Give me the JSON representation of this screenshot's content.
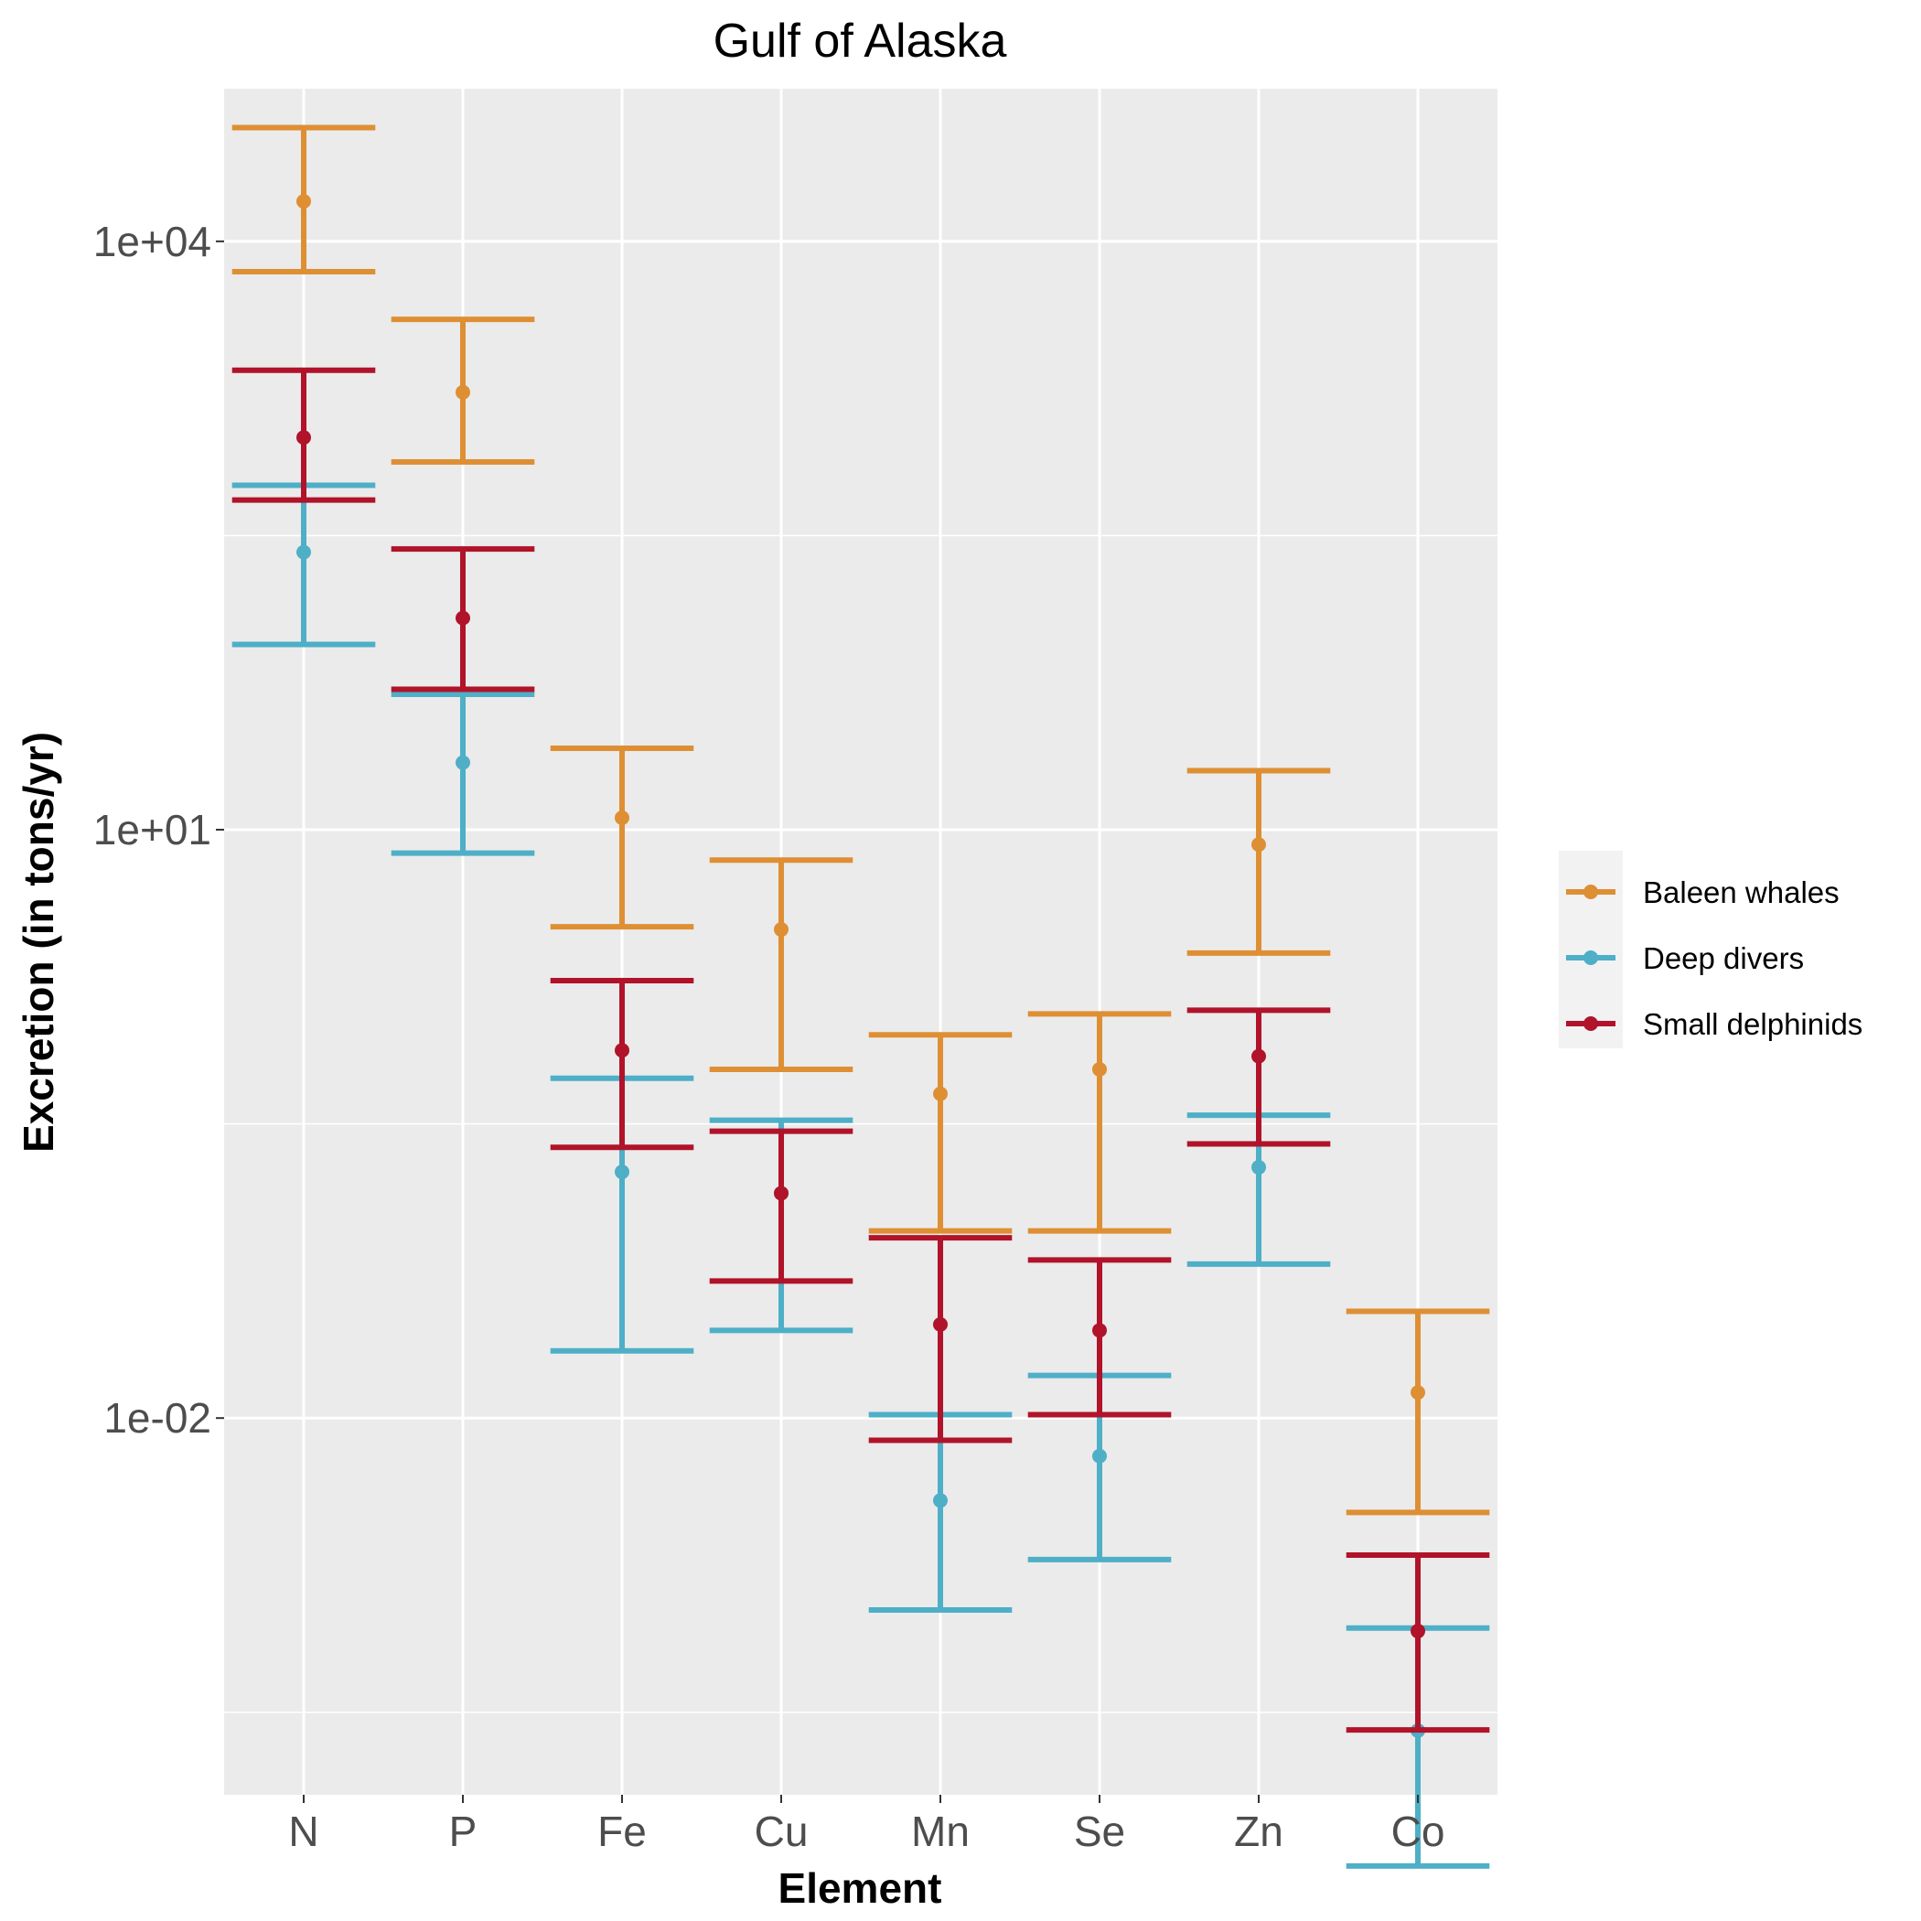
{
  "chart_data": {
    "type": "errorbar",
    "title": "Gulf of Alaska",
    "xlabel": "Element",
    "ylabel": "Excretion (in tons/yr)",
    "y_scale": "log10",
    "ylim": [
      0.00012,
      60000
    ],
    "y_ticks": [
      {
        "value": 0.01,
        "label": "1e-02"
      },
      {
        "value": 10,
        "label": "1e+01"
      },
      {
        "value": 10000,
        "label": "1e+04"
      }
    ],
    "y_minor_ticks": [
      0.000316,
      0.316,
      316
    ],
    "grid": true,
    "legend_position": "right",
    "categories": [
      "N",
      "P",
      "Fe",
      "Cu",
      "Mn",
      "Se",
      "Zn",
      "Co"
    ],
    "series": [
      {
        "name": "Baleen whales",
        "color": "#DE8F34",
        "points": [
          {
            "x": "N",
            "y": 16000,
            "lower": 7000,
            "upper": 38000
          },
          {
            "x": "P",
            "y": 1700,
            "lower": 750,
            "upper": 4000
          },
          {
            "x": "Fe",
            "y": 11.5,
            "lower": 3.2,
            "upper": 26
          },
          {
            "x": "Cu",
            "y": 3.1,
            "lower": 0.6,
            "upper": 7
          },
          {
            "x": "Mn",
            "y": 0.45,
            "lower": 0.09,
            "upper": 0.9
          },
          {
            "x": "Se",
            "y": 0.6,
            "lower": 0.09,
            "upper": 1.15
          },
          {
            "x": "Zn",
            "y": 8.4,
            "lower": 2.35,
            "upper": 20
          },
          {
            "x": "Co",
            "y": 0.0135,
            "lower": 0.0033,
            "upper": 0.035
          }
        ]
      },
      {
        "name": "Deep divers",
        "color": "#4EAFC7",
        "points": [
          {
            "x": "N",
            "y": 260,
            "lower": 88,
            "upper": 570
          },
          {
            "x": "P",
            "y": 22,
            "lower": 7.6,
            "upper": 49
          },
          {
            "x": "Fe",
            "y": 0.18,
            "lower": 0.022,
            "upper": 0.54
          },
          {
            "x": "Cu",
            "y": 0.14,
            "lower": 0.028,
            "upper": 0.33
          },
          {
            "x": "Mn",
            "y": 0.0038,
            "lower": 0.00105,
            "upper": 0.0104
          },
          {
            "x": "Se",
            "y": 0.0064,
            "lower": 0.0019,
            "upper": 0.0165
          },
          {
            "x": "Zn",
            "y": 0.19,
            "lower": 0.061,
            "upper": 0.35
          },
          {
            "x": "Co",
            "y": 0.000255,
            "lower": 5.2e-05,
            "upper": 0.00085
          }
        ]
      },
      {
        "name": "Small delphinids",
        "color": "#B0132A",
        "points": [
          {
            "x": "N",
            "y": 1000,
            "lower": 480,
            "upper": 2200
          },
          {
            "x": "P",
            "y": 120,
            "lower": 52,
            "upper": 270
          },
          {
            "x": "Fe",
            "y": 0.75,
            "lower": 0.24,
            "upper": 1.7
          },
          {
            "x": "Cu",
            "y": 0.14,
            "lower": 0.05,
            "upper": 0.29
          },
          {
            "x": "Mn",
            "y": 0.03,
            "lower": 0.0077,
            "upper": 0.083
          },
          {
            "x": "Se",
            "y": 0.028,
            "lower": 0.0104,
            "upper": 0.064
          },
          {
            "x": "Zn",
            "y": 0.7,
            "lower": 0.25,
            "upper": 1.2
          },
          {
            "x": "Co",
            "y": 0.00082,
            "lower": 0.000257,
            "upper": 0.002
          }
        ]
      }
    ]
  }
}
